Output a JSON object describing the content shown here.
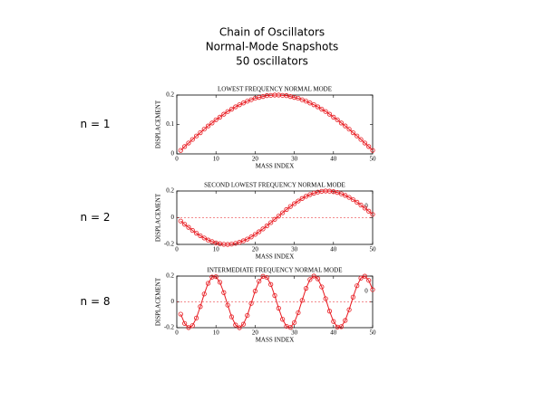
{
  "title": "Chain of Oscillators",
  "subtitle": "Normal-Mode Snapshots",
  "note": "50 oscillators",
  "chart_data": [
    {
      "type": "line",
      "label": "n = 1",
      "title": "LOWEST FREQUENCY NORMAL MODE",
      "x_label": "MASS INDEX",
      "y_label": "DISPLACEMENT",
      "x": [
        1,
        2,
        3,
        4,
        5,
        6,
        7,
        8,
        9,
        10,
        11,
        12,
        13,
        14,
        15,
        16,
        17,
        18,
        19,
        20,
        21,
        22,
        23,
        24,
        25,
        26,
        27,
        28,
        29,
        30,
        31,
        32,
        33,
        34,
        35,
        36,
        37,
        38,
        39,
        40,
        41,
        42,
        43,
        44,
        45,
        46,
        47,
        48,
        49,
        50
      ],
      "series": [
        {
          "color": "#e8191f",
          "values": [
            0.012,
            0.025,
            0.037,
            0.049,
            0.061,
            0.072,
            0.084,
            0.095,
            0.105,
            0.116,
            0.125,
            0.135,
            0.144,
            0.152,
            0.16,
            0.167,
            0.173,
            0.179,
            0.184,
            0.189,
            0.192,
            0.195,
            0.198,
            0.199,
            0.2,
            0.2,
            0.199,
            0.198,
            0.195,
            0.192,
            0.189,
            0.184,
            0.179,
            0.173,
            0.167,
            0.16,
            0.152,
            0.144,
            0.135,
            0.125,
            0.116,
            0.105,
            0.095,
            0.084,
            0.072,
            0.061,
            0.049,
            0.037,
            0.025,
            0.012
          ]
        }
      ],
      "xlim": [
        0,
        50
      ],
      "xticks": [
        0,
        10,
        20,
        30,
        40,
        50
      ],
      "ylim": [
        0,
        0.2
      ],
      "yticks": [
        0,
        0.1,
        0.2
      ],
      "zero_line": false
    },
    {
      "type": "line",
      "label": "n = 2",
      "title": "SECOND LOWEST FREQUENCY NORMAL MODE",
      "x_label": "MASS INDEX",
      "y_label": "DISPLACEMENT",
      "annotation": "0",
      "x": [
        1,
        2,
        3,
        4,
        5,
        6,
        7,
        8,
        9,
        10,
        11,
        12,
        13,
        14,
        15,
        16,
        17,
        18,
        19,
        20,
        21,
        22,
        23,
        24,
        25,
        26,
        27,
        28,
        29,
        30,
        31,
        32,
        33,
        34,
        35,
        36,
        37,
        38,
        39,
        40,
        41,
        42,
        43,
        44,
        45,
        46,
        47,
        48,
        49,
        50
      ],
      "series": [
        {
          "color": "#e8191f",
          "values": [
            -0.025,
            -0.049,
            -0.072,
            -0.095,
            -0.116,
            -0.135,
            -0.152,
            -0.167,
            -0.179,
            -0.189,
            -0.195,
            -0.199,
            -0.2,
            -0.198,
            -0.192,
            -0.184,
            -0.173,
            -0.16,
            -0.144,
            -0.125,
            -0.105,
            -0.084,
            -0.061,
            -0.037,
            -0.012,
            0.012,
            0.037,
            0.061,
            0.084,
            0.105,
            0.125,
            0.144,
            0.16,
            0.173,
            0.184,
            0.192,
            0.198,
            0.2,
            0.199,
            0.195,
            0.189,
            0.179,
            0.167,
            0.152,
            0.135,
            0.116,
            0.095,
            0.072,
            0.049,
            0.025
          ]
        }
      ],
      "xlim": [
        0,
        50
      ],
      "xticks": [
        0,
        10,
        20,
        30,
        40,
        50
      ],
      "ylim": [
        -0.2,
        0.2
      ],
      "yticks": [
        -0.2,
        0,
        0.2
      ],
      "zero_line": true
    },
    {
      "type": "line",
      "label": "n = 8",
      "title": "INTERMEDIATE FREQUENCY NORMAL MODE",
      "x_label": "MASS INDEX",
      "y_label": "DISPLACEMENT",
      "annotation": "0",
      "x": [
        1,
        2,
        3,
        4,
        5,
        6,
        7,
        8,
        9,
        10,
        11,
        12,
        13,
        14,
        15,
        16,
        17,
        18,
        19,
        20,
        21,
        22,
        23,
        24,
        25,
        26,
        27,
        28,
        29,
        30,
        31,
        32,
        33,
        34,
        35,
        36,
        37,
        38,
        39,
        40,
        41,
        42,
        43,
        44,
        45,
        46,
        47,
        48,
        49,
        50
      ],
      "series": [
        {
          "color": "#e8191f",
          "values": [
            -0.095,
            -0.167,
            -0.199,
            -0.184,
            -0.125,
            -0.037,
            0.061,
            0.144,
            0.192,
            0.195,
            0.152,
            0.072,
            -0.025,
            -0.116,
            -0.179,
            -0.2,
            -0.173,
            -0.105,
            -0.012,
            0.084,
            0.16,
            0.198,
            0.189,
            0.135,
            0.049,
            -0.049,
            -0.135,
            -0.189,
            -0.198,
            -0.16,
            -0.084,
            0.012,
            0.105,
            0.173,
            0.2,
            0.179,
            0.116,
            0.025,
            -0.072,
            -0.152,
            -0.195,
            -0.192,
            -0.144,
            -0.061,
            0.037,
            0.125,
            0.184,
            0.199,
            0.167,
            0.095
          ]
        }
      ],
      "xlim": [
        0,
        50
      ],
      "xticks": [
        0,
        10,
        20,
        30,
        40,
        50
      ],
      "ylim": [
        -0.2,
        0.2
      ],
      "yticks": [
        -0.2,
        0,
        0.2
      ],
      "zero_line": true
    }
  ]
}
